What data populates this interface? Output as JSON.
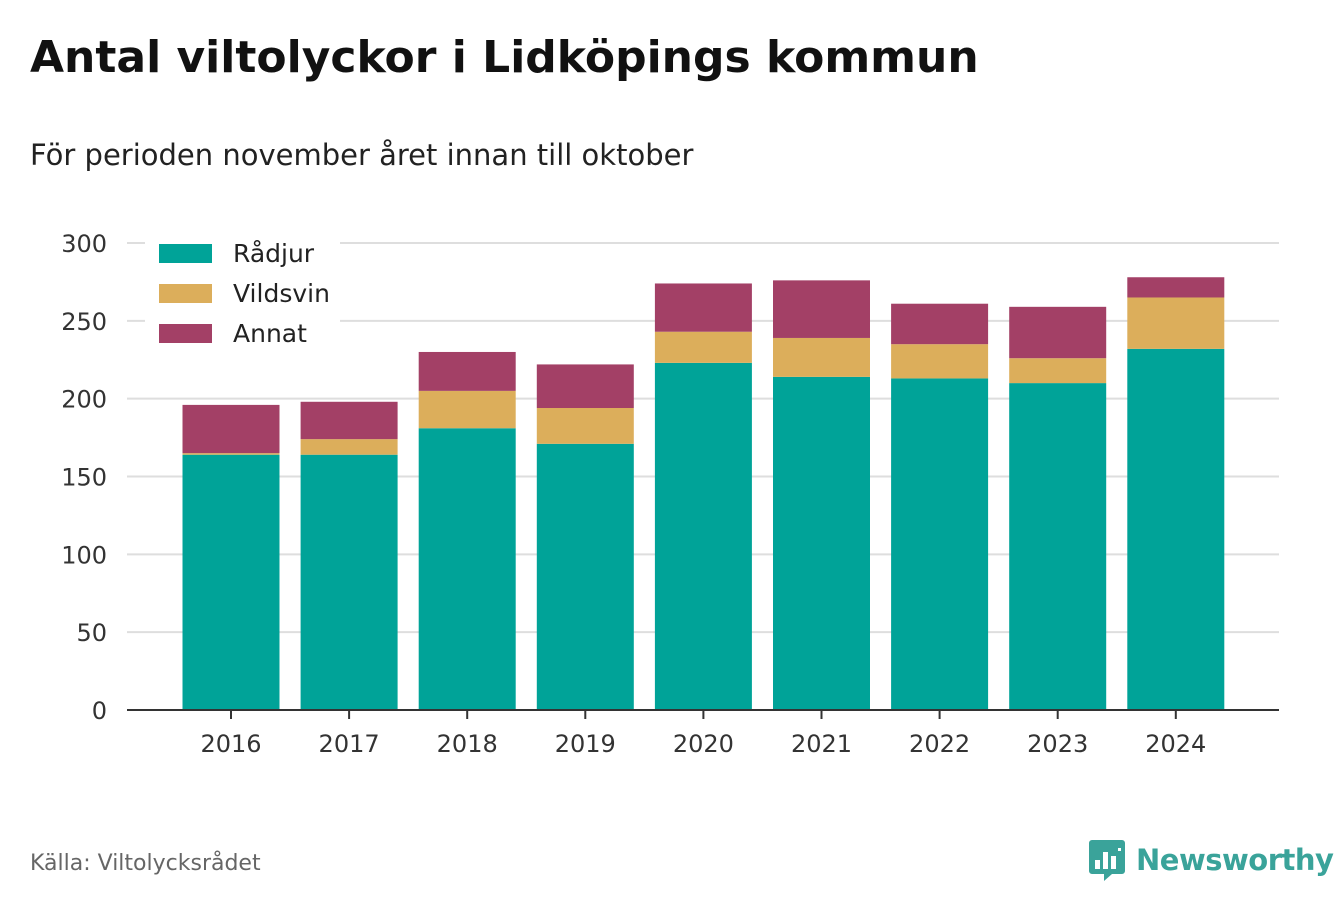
{
  "header": {
    "title": "Antal viltolyckor i Lidköpings kommun",
    "subtitle": "För perioden november året innan till oktober"
  },
  "footer": {
    "source": "Källa: Viltolycksrådet",
    "brand": "Newsworthy",
    "brand_icon": "bar-chart-speech-bubble-icon",
    "brand_color": "#3aa39a"
  },
  "chart_data": {
    "type": "bar",
    "stacked": true,
    "title": "Antal viltolyckor i Lidköpings kommun",
    "subtitle": "För perioden november året innan till oktober",
    "xlabel": "",
    "ylabel": "",
    "categories": [
      "2016",
      "2017",
      "2018",
      "2019",
      "2020",
      "2021",
      "2022",
      "2023",
      "2024"
    ],
    "series": [
      {
        "name": "Rådjur",
        "color": "#00a398",
        "values": [
          164,
          164,
          181,
          171,
          223,
          214,
          213,
          210,
          232
        ]
      },
      {
        "name": "Vildsvin",
        "color": "#dcae5b",
        "values": [
          1,
          10,
          24,
          23,
          20,
          25,
          22,
          16,
          33
        ]
      },
      {
        "name": "Annat",
        "color": "#a34066",
        "values": [
          31,
          24,
          25,
          28,
          31,
          37,
          26,
          33,
          13
        ]
      }
    ],
    "ylim": [
      0,
      300
    ],
    "yticks": [
      0,
      50,
      100,
      150,
      200,
      250,
      300
    ],
    "grid": true,
    "legend_position": "top-left"
  }
}
